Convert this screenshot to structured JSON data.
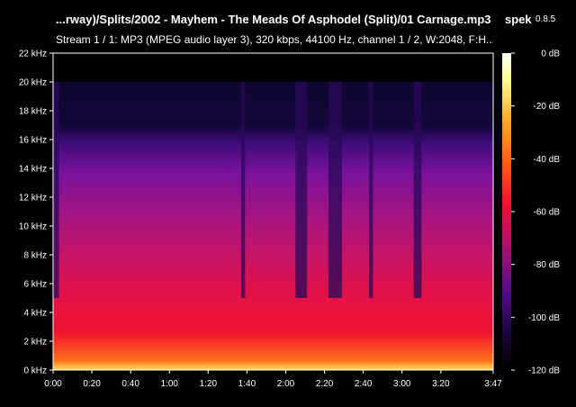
{
  "window": {
    "title": "...rway)/Splits/2002 - Mayhem - The Meads Of Asphodel (Split)/01 Carnage.mp3",
    "app_name": "spek",
    "app_version": "0.8.5",
    "stream_info": "Stream 1 / 1: MP3 (MPEG audio layer 3), 320 kbps, 44100 Hz, channel 1 / 2, W:2048, F:H..."
  },
  "chart_data": {
    "type": "heatmap",
    "title": "...rway)/Splits/2002 - Mayhem - The Meads Of Asphodel (Split)/01 Carnage.mp3",
    "x_axis": {
      "unit": "time (m:ss)",
      "range_seconds": [
        0,
        227
      ],
      "tick_labels": [
        "0:00",
        "0:20",
        "0:40",
        "1:00",
        "1:20",
        "1:40",
        "2:00",
        "2:20",
        "2:40",
        "3:00",
        "3:20",
        "3:47"
      ],
      "tick_values_seconds": [
        0,
        20,
        40,
        60,
        80,
        100,
        120,
        140,
        160,
        180,
        200,
        227
      ]
    },
    "y_axis": {
      "unit": "kHz",
      "range": [
        0,
        22
      ],
      "tick_labels": [
        "0 kHz",
        "2 kHz",
        "4 kHz",
        "6 kHz",
        "8 kHz",
        "10 kHz",
        "12 kHz",
        "14 kHz",
        "16 kHz",
        "18 kHz",
        "20 kHz",
        "22 kHz"
      ],
      "tick_values": [
        0,
        2,
        4,
        6,
        8,
        10,
        12,
        14,
        16,
        18,
        20,
        22
      ]
    },
    "color_scale": {
      "unit": "dB",
      "range": [
        -120,
        0
      ],
      "tick_labels": [
        "0 dB",
        "-20 dB",
        "-40 dB",
        "-60 dB",
        "-80 dB",
        "-100 dB",
        "-120 dB"
      ],
      "tick_values": [
        0,
        -20,
        -40,
        -60,
        -80,
        -100,
        -120
      ],
      "colors": [
        "#000000",
        "#1a0640",
        "#5a0a8c",
        "#b0106e",
        "#ee1030",
        "#ff6010",
        "#ffb030",
        "#ffff90",
        "#ffffff"
      ]
    },
    "spectral_content": {
      "lowpass_cutoff_khz": 20,
      "secondary_cutoff_khz": 16,
      "strongest_band_khz": [
        0,
        5
      ],
      "quiet_segments_seconds": [
        [
          0,
          3
        ],
        [
          97,
          99
        ],
        [
          125,
          131
        ],
        [
          142,
          149
        ],
        [
          163,
          165
        ],
        [
          186,
          190
        ]
      ]
    }
  }
}
